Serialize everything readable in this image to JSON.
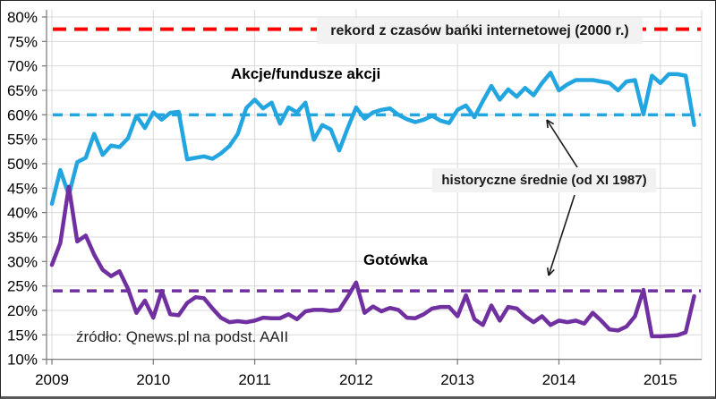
{
  "chart_data": {
    "type": "line",
    "x_start": "2009-01",
    "x_end": "2015-05",
    "x_tick_labels": [
      "2009",
      "2010",
      "2011",
      "2012",
      "2013",
      "2014",
      "2015"
    ],
    "y_axis": {
      "min": 10,
      "max": 80,
      "step": 5,
      "format": "percent"
    },
    "y_tick_labels": [
      "10%",
      "15%",
      "20%",
      "25%",
      "30%",
      "35%",
      "40%",
      "45%",
      "50%",
      "55%",
      "60%",
      "65%",
      "70%",
      "75%",
      "80%"
    ],
    "grid": true,
    "legend_position": "inline-labels",
    "series": [
      {
        "name": "Akcje/fundusze akcji",
        "color": "#23A5E0",
        "values": [
          41.8,
          48.7,
          43.6,
          50.3,
          51.2,
          56.1,
          51.8,
          53.7,
          53.4,
          55.2,
          59.8,
          57.3,
          60.5,
          59.0,
          60.4,
          60.6,
          50.9,
          51.2,
          51.5,
          51.0,
          52.1,
          53.6,
          56.1,
          61.4,
          63.1,
          61.3,
          62.5,
          58.2,
          61.5,
          60.5,
          62.5,
          54.9,
          57.9,
          57.0,
          52.7,
          57.3,
          61.5,
          59.2,
          60.5,
          61.0,
          61.3,
          60.0,
          59.1,
          58.5,
          59.0,
          59.8,
          58.8,
          58.3,
          61.0,
          61.9,
          59.5,
          62.8,
          65.9,
          63.1,
          65.2,
          63.7,
          65.5,
          64.0,
          66.5,
          68.6,
          65.0,
          66.2,
          67.1,
          67.1,
          67.1,
          66.8,
          66.5,
          65.0,
          66.8,
          67.1,
          60.1,
          68.0,
          66.5,
          68.3,
          68.3,
          68.0,
          57.9
        ]
      },
      {
        "name": "Gotówka",
        "color": "#7030A0",
        "values": [
          29.3,
          33.8,
          45.3,
          34.1,
          35.3,
          31.4,
          28.3,
          27.0,
          28.0,
          24.4,
          19.5,
          22.0,
          18.5,
          24.0,
          19.2,
          19.0,
          21.5,
          22.7,
          22.5,
          20.4,
          18.5,
          17.6,
          17.8,
          17.6,
          17.9,
          18.5,
          18.4,
          18.4,
          19.2,
          18.2,
          19.8,
          20.1,
          20.1,
          19.9,
          20.1,
          22.8,
          25.7,
          19.5,
          20.8,
          19.8,
          20.5,
          20.1,
          18.5,
          18.4,
          19.2,
          20.4,
          20.7,
          20.7,
          18.8,
          23.1,
          18.2,
          17.0,
          21.0,
          17.9,
          20.7,
          20.4,
          18.8,
          17.6,
          18.8,
          17.0,
          17.9,
          17.6,
          17.9,
          17.3,
          19.5,
          17.9,
          16.1,
          15.9,
          16.7,
          18.8,
          24.2,
          14.7,
          14.7,
          14.8,
          14.9,
          15.5,
          22.9
        ]
      }
    ],
    "reference_lines": [
      {
        "id": "record2000",
        "label": "rekord z czasów bańki internetowej (2000 r.)",
        "value": 77.5,
        "color": "#FF0000"
      },
      {
        "id": "avg-stocks",
        "label": "historyczne średnie (od XI 1987)",
        "value": 60,
        "color": "#23A5E0"
      },
      {
        "id": "avg-cash",
        "label": "historyczne średnie (od XI 1987)",
        "value": 24,
        "color": "#7030A0"
      }
    ],
    "annotations": {
      "record": "rekord z czasów bańki internetowej (2000 r.)",
      "historical": "historyczne średnie (od XI 1987)"
    },
    "source": "źródło: Qnews.pl na podst. AAII",
    "colors": {
      "grid": "#D9D9D9",
      "axis": "#7F7F7F",
      "tick_text": "#000000",
      "annotation_text": "#1A1A1A",
      "annotation_bg": "#F2F2F2",
      "arrow": "#1A1A1A"
    }
  }
}
